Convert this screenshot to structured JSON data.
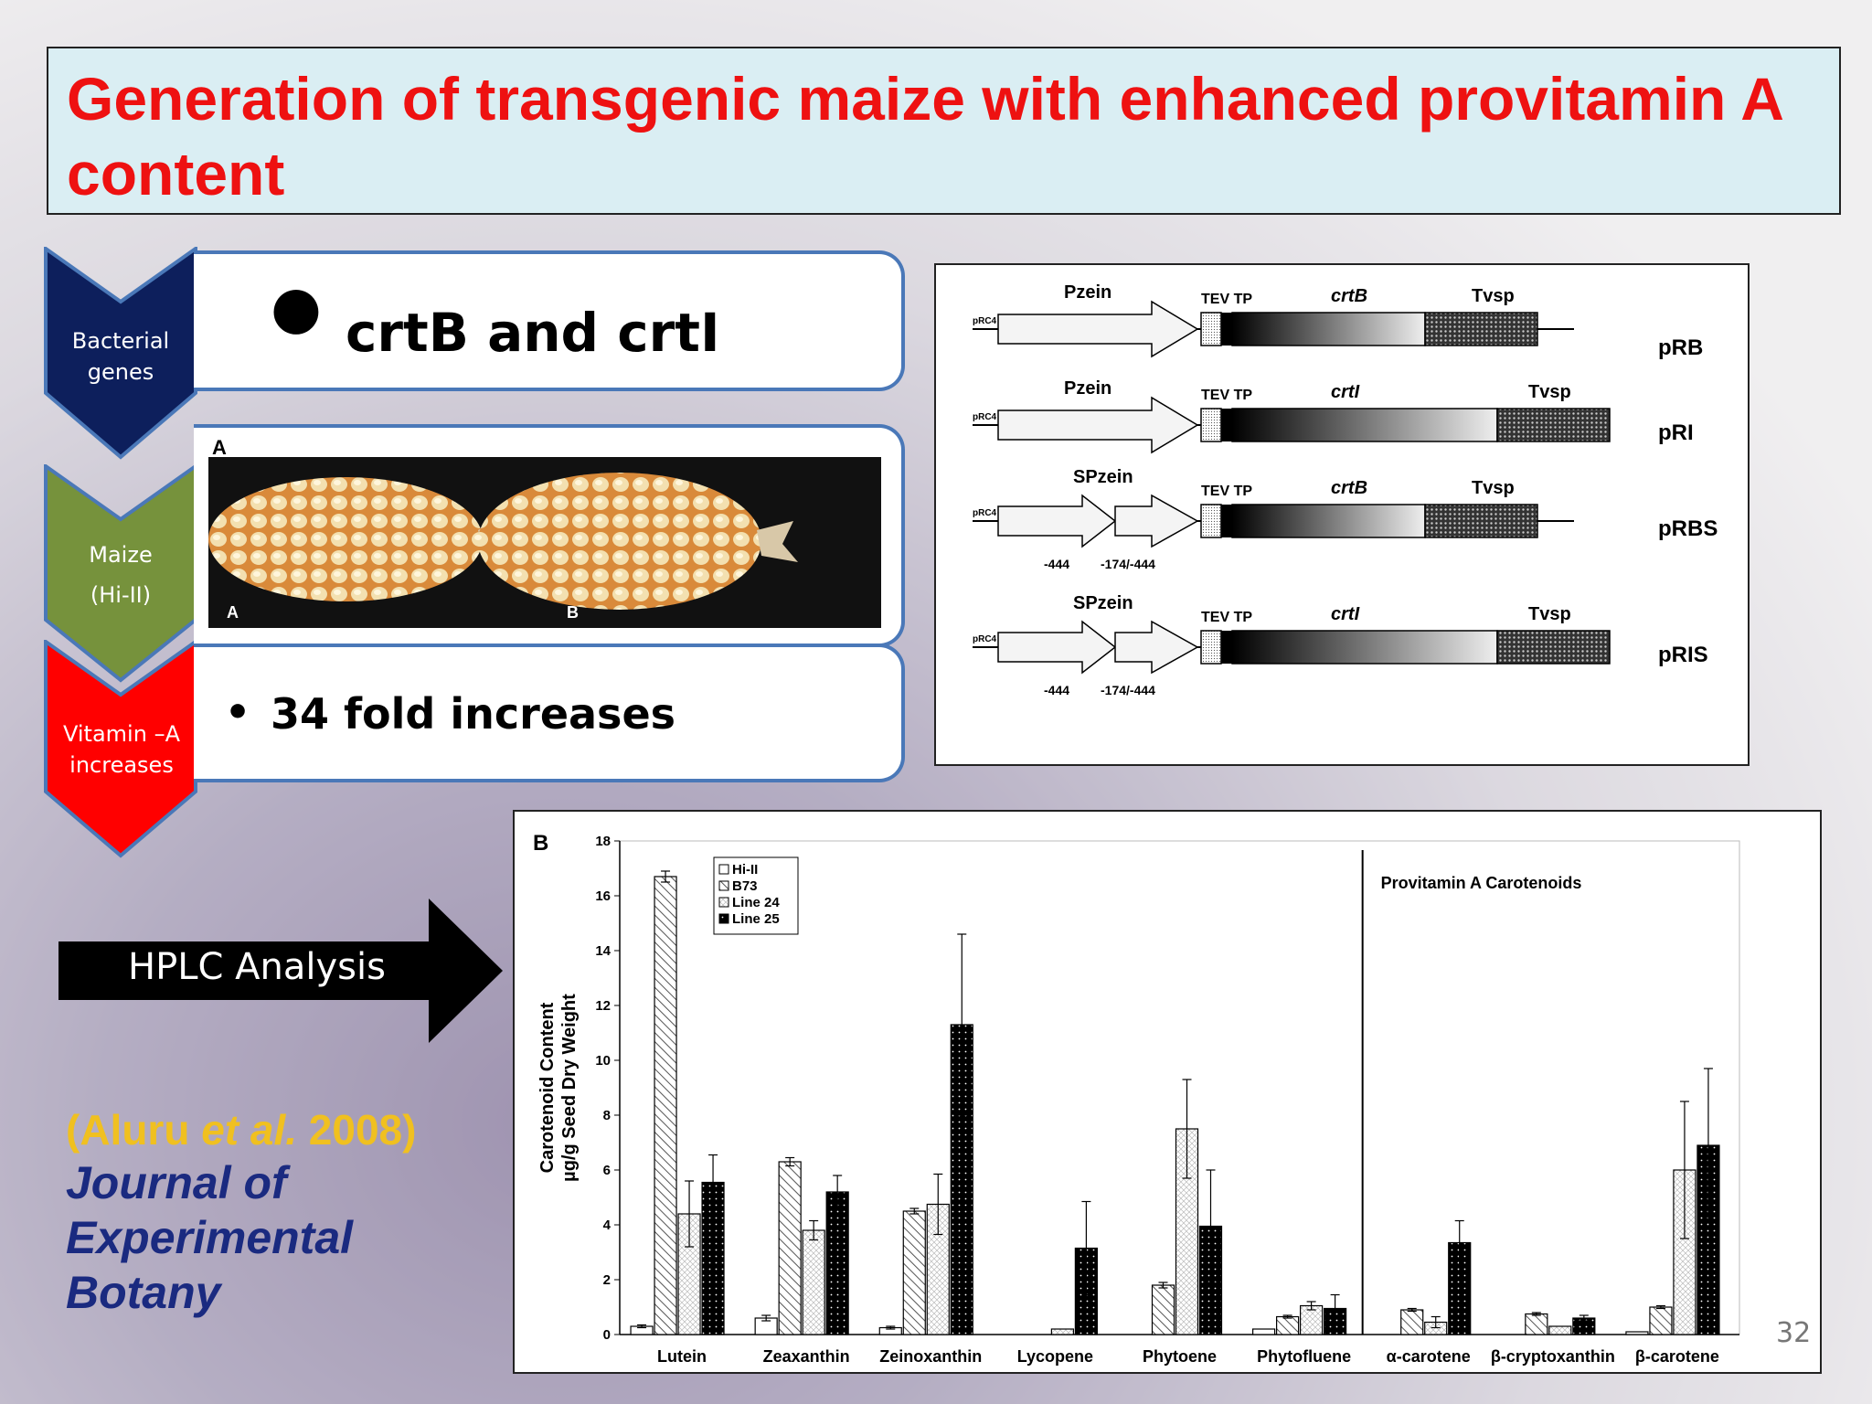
{
  "slide": {
    "title": "Generation of transgenic maize with enhanced provitamin A content",
    "page_number": "32"
  },
  "steps": [
    {
      "label": "Bacterial genes",
      "color": "#0d1f5c",
      "content": "crtB and crtI"
    },
    {
      "label_line1": "Maize",
      "label_line2": "(Hi-II)",
      "color": "#76923c"
    },
    {
      "label": "Vitamin –A increases",
      "color": "#ff0000",
      "content": "34 fold increases"
    }
  ],
  "photo": {
    "panel_label": "A",
    "ear_labels": [
      "A",
      "B"
    ]
  },
  "construct_figure": {
    "constructs": [
      {
        "name": "pRB",
        "promoter": "Pzein",
        "gene": "crtB",
        "terminator": "Tvsp",
        "tev": "TEV TP",
        "vector": "pRC4"
      },
      {
        "name": "pRI",
        "promoter": "Pzein",
        "gene": "crtI",
        "terminator": "Tvsp",
        "tev": "TEV TP",
        "vector": "pRC4"
      },
      {
        "name": "pRBS",
        "promoter": "SPzein",
        "gene": "crtB",
        "terminator": "Tvsp",
        "tev": "TEV TP",
        "vector": "pRC4",
        "coords": [
          "-444",
          "-174/-444"
        ]
      },
      {
        "name": "pRIS",
        "promoter": "SPzein",
        "gene": "crtI",
        "terminator": "Tvsp",
        "tev": "TEV TP",
        "vector": "pRC4",
        "coords": [
          "-444",
          "-174/-444"
        ]
      }
    ]
  },
  "hplc": {
    "label": "HPLC  Analysis"
  },
  "reference": {
    "cite_prefix": "(Aluru ",
    "cite_italic": "et al.",
    "cite_suffix": " 2008)",
    "journal_lines": [
      "Journal of",
      "Experimental",
      "Botany"
    ]
  },
  "chart_data": {
    "type": "bar",
    "panel_label": "B",
    "ylabel_lines": [
      "Carotenoid Content",
      "µg/g Seed Dry Weight"
    ],
    "ylim": [
      0,
      18
    ],
    "yticks": [
      0,
      2,
      4,
      6,
      8,
      10,
      12,
      14,
      16,
      18
    ],
    "annotation": "Provitamin A Carotenoids",
    "categories": [
      "Lutein",
      "Zeaxanthin",
      "Zeinoxanthin",
      "Lycopene",
      "Phytoene",
      "Phytofluene",
      "α-carotene",
      "β-cryptoxanthin",
      "β-carotene"
    ],
    "series": [
      {
        "name": "Hi-II",
        "values": [
          0.3,
          0.6,
          0.25,
          0.0,
          0.0,
          0.2,
          0.0,
          0.0,
          0.1
        ],
        "errors": [
          0.05,
          0.1,
          0.05,
          0,
          0,
          0.02,
          0,
          0,
          0.02
        ]
      },
      {
        "name": "B73",
        "values": [
          16.7,
          6.3,
          4.5,
          0.0,
          1.8,
          0.65,
          0.9,
          0.75,
          1.0
        ],
        "errors": [
          0.2,
          0.15,
          0.1,
          0,
          0.1,
          0.05,
          0.05,
          0.05,
          0.05
        ]
      },
      {
        "name": "Line 24",
        "values": [
          4.4,
          3.8,
          4.75,
          0.2,
          7.5,
          1.05,
          0.45,
          0.3,
          6.0
        ],
        "errors": [
          1.2,
          0.35,
          1.1,
          0.02,
          1.8,
          0.15,
          0.2,
          0.02,
          2.5
        ]
      },
      {
        "name": "Line 25",
        "values": [
          5.55,
          5.2,
          11.3,
          3.15,
          3.95,
          0.95,
          3.35,
          0.6,
          6.9
        ],
        "errors": [
          1.0,
          0.6,
          3.3,
          1.7,
          2.05,
          0.5,
          0.8,
          0.1,
          2.8
        ]
      }
    ]
  }
}
